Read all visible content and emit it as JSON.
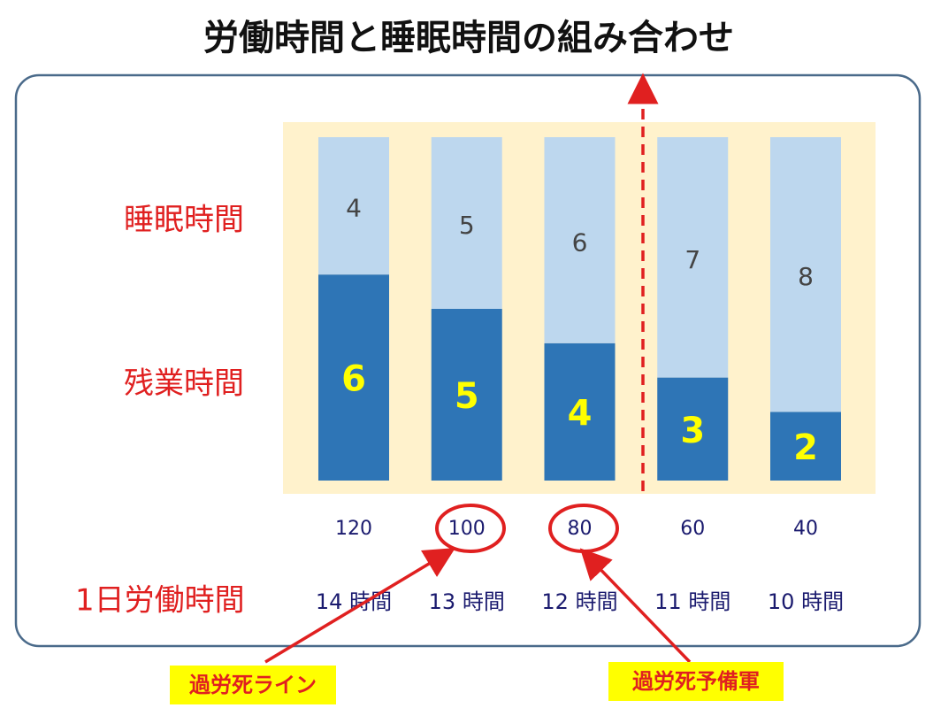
{
  "chart_data": {
    "type": "stacked_bar",
    "title": "労働時間と睡眠時間の組み合わせ",
    "categories": [
      "120",
      "100",
      "80",
      "60",
      "40"
    ],
    "work_hours": [
      "14 時間",
      "13 時間",
      "12 時間",
      "11 時間",
      "10 時間"
    ],
    "x_label": "1日労働時間",
    "series": [
      {
        "name": "残業時間",
        "color": "#2e75b6",
        "values": [
          6,
          5,
          4,
          3,
          2
        ]
      },
      {
        "name": "睡眠時間",
        "color": "#bdd7ee",
        "values": [
          4,
          5,
          6,
          7,
          8
        ]
      }
    ],
    "ylim": [
      0,
      10
    ],
    "annotations": [
      "過労死ライン",
      "過労死予備軍"
    ]
  }
}
